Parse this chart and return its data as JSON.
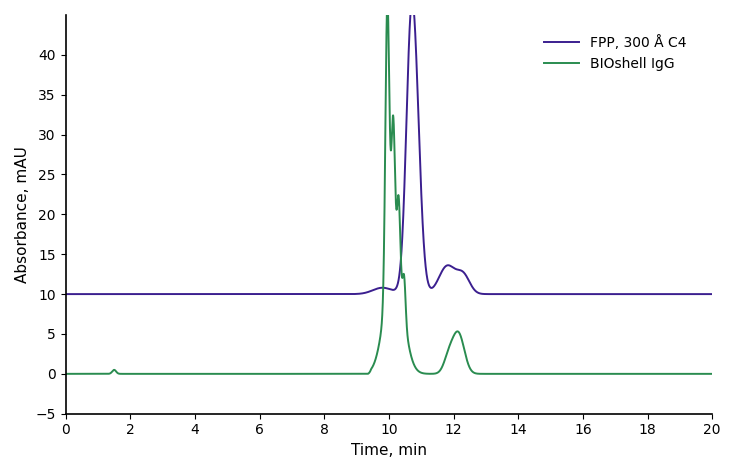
{
  "xlabel": "Time, min",
  "ylabel": "Absorbance, mAU",
  "xlim": [
    0,
    20
  ],
  "ylim": [
    -5,
    45
  ],
  "xticks": [
    0,
    2,
    4,
    6,
    8,
    10,
    12,
    14,
    16,
    18,
    20
  ],
  "yticks": [
    -5,
    0,
    5,
    10,
    15,
    20,
    25,
    30,
    35,
    40
  ],
  "purple_color": "#3b1f8f",
  "green_color": "#2a8c50",
  "legend_labels": [
    "FPP, 300 Å C4",
    "BIOshell IgG"
  ],
  "background_color": "#ffffff",
  "linewidth": 1.4
}
